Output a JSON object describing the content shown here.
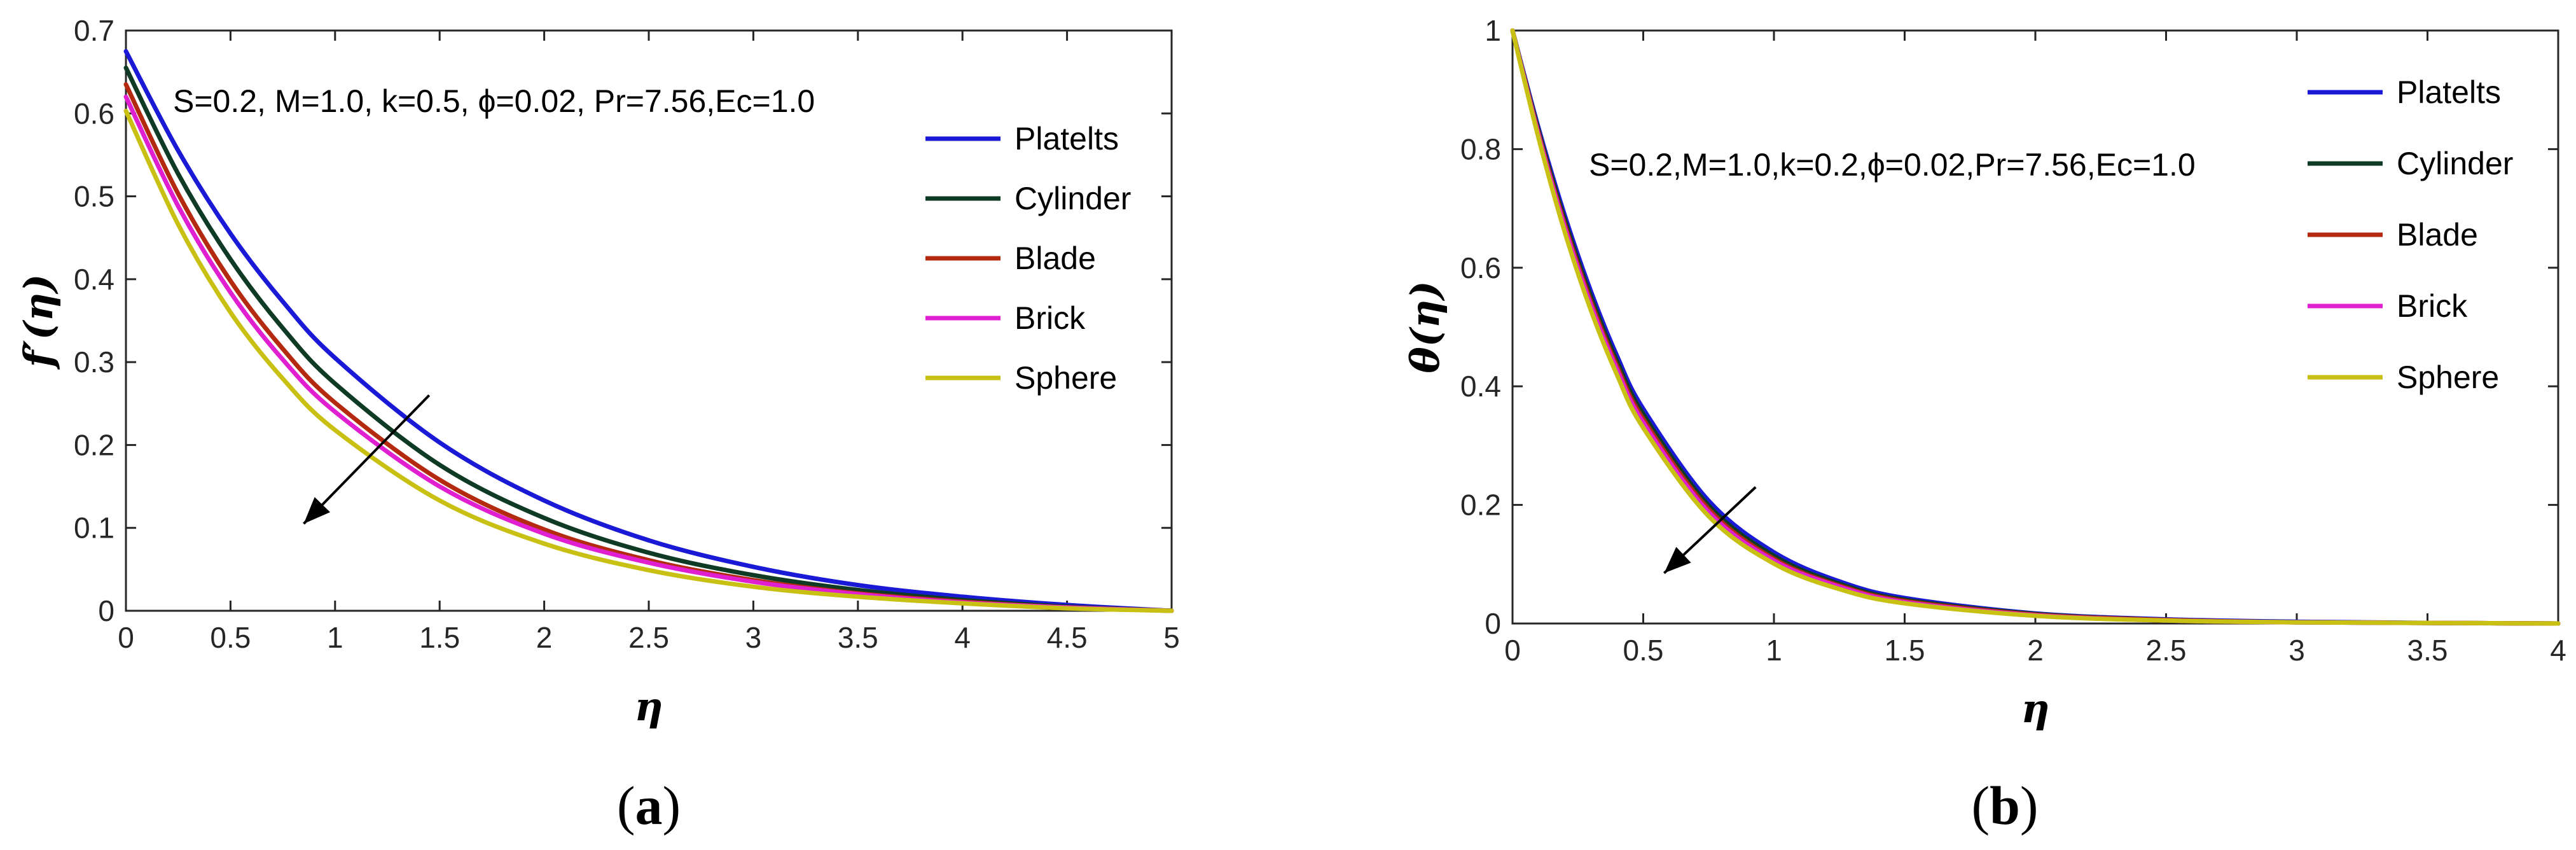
{
  "chart_data": [
    {
      "type": "line",
      "panel_label": "a",
      "xlabel": "η",
      "ylabel": "f′(η)",
      "xlim": [
        0,
        5
      ],
      "ylim": [
        0,
        0.7
      ],
      "xticks": [
        "0",
        "0.5",
        "1",
        "1.5",
        "2",
        "2.5",
        "3",
        "3.5",
        "4",
        "4.5",
        "5"
      ],
      "yticks": [
        "0",
        "0.1",
        "0.2",
        "0.3",
        "0.4",
        "0.5",
        "0.6",
        "0.7"
      ],
      "annotation": "S=0.2, M=1.0, k=0.5, ϕ=0.02, Pr=7.56,Ec=1.0",
      "legend_position": "top-right",
      "arrow": {
        "from": [
          1.45,
          0.26
        ],
        "to": [
          0.85,
          0.105
        ]
      },
      "series": [
        {
          "name": "Platelts",
          "color": "#1a1ad6",
          "x": [
            0,
            0.25,
            0.5,
            0.75,
            1,
            1.5,
            2,
            2.5,
            3,
            3.5,
            4,
            4.5,
            5
          ],
          "y": [
            0.675,
            0.555,
            0.455,
            0.373,
            0.305,
            0.203,
            0.133,
            0.085,
            0.053,
            0.031,
            0.017,
            0.007,
            0
          ]
        },
        {
          "name": "Cylinder",
          "color": "#0f3a24",
          "x": [
            0,
            0.25,
            0.5,
            0.75,
            1,
            1.5,
            2,
            2.5,
            3,
            3.5,
            4,
            4.5,
            5
          ],
          "y": [
            0.655,
            0.527,
            0.424,
            0.341,
            0.274,
            0.176,
            0.112,
            0.07,
            0.043,
            0.025,
            0.013,
            0.005,
            0
          ]
        },
        {
          "name": "Blade",
          "color": "#b42a10",
          "x": [
            0,
            0.25,
            0.5,
            0.75,
            1,
            1.5,
            2,
            2.5,
            3,
            3.5,
            4,
            4.5,
            5
          ],
          "y": [
            0.635,
            0.503,
            0.398,
            0.316,
            0.251,
            0.158,
            0.098,
            0.061,
            0.037,
            0.021,
            0.011,
            0.004,
            0
          ]
        },
        {
          "name": "Brick",
          "color": "#e020d0",
          "x": [
            0,
            0.25,
            0.5,
            0.75,
            1,
            1.5,
            2,
            2.5,
            3,
            3.5,
            4,
            4.5,
            5
          ],
          "y": [
            0.62,
            0.488,
            0.384,
            0.303,
            0.24,
            0.15,
            0.093,
            0.058,
            0.035,
            0.02,
            0.01,
            0.004,
            0
          ]
        },
        {
          "name": "Sphere",
          "color": "#c8c012",
          "x": [
            0,
            0.25,
            0.5,
            0.75,
            1,
            1.5,
            2,
            2.5,
            3,
            3.5,
            4,
            4.5,
            5
          ],
          "y": [
            0.603,
            0.466,
            0.36,
            0.28,
            0.218,
            0.133,
            0.081,
            0.049,
            0.029,
            0.017,
            0.009,
            0.003,
            0
          ]
        }
      ]
    },
    {
      "type": "line",
      "panel_label": "b",
      "xlabel": "η",
      "ylabel": "θ(η)",
      "xlim": [
        0,
        4
      ],
      "ylim": [
        0,
        1
      ],
      "xticks": [
        "0",
        "0.5",
        "1",
        "1.5",
        "2",
        "2.5",
        "3",
        "3.5",
        "4"
      ],
      "yticks": [
        "0",
        "0.2",
        "0.4",
        "0.6",
        "0.8",
        "1"
      ],
      "annotation": "S=0.2,M=1.0,k=0.2,ϕ=0.02,Pr=7.56,Ec=1.0",
      "legend_position": "top-right",
      "arrow": {
        "from": [
          0.93,
          0.23
        ],
        "to": [
          0.58,
          0.085
        ]
      },
      "series": [
        {
          "name": "Platelts",
          "color": "#1a1ad6",
          "x": [
            0,
            0.1,
            0.2,
            0.3,
            0.4,
            0.5,
            0.75,
            1,
            1.25,
            1.5,
            2,
            2.5,
            3,
            3.5,
            4
          ],
          "y": [
            1,
            0.835,
            0.688,
            0.56,
            0.451,
            0.362,
            0.207,
            0.12,
            0.071,
            0.043,
            0.017,
            0.007,
            0.003,
            0.001,
            0
          ]
        },
        {
          "name": "Cylinder",
          "color": "#0f3a24",
          "x": [
            0,
            0.1,
            0.2,
            0.3,
            0.4,
            0.5,
            0.75,
            1,
            1.25,
            1.5,
            2,
            2.5,
            3,
            3.5,
            4
          ],
          "y": [
            1,
            0.83,
            0.68,
            0.551,
            0.442,
            0.353,
            0.199,
            0.114,
            0.067,
            0.04,
            0.016,
            0.006,
            0.002,
            0.001,
            0
          ]
        },
        {
          "name": "Blade",
          "color": "#b42a10",
          "x": [
            0,
            0.1,
            0.2,
            0.3,
            0.4,
            0.5,
            0.75,
            1,
            1.25,
            1.5,
            2,
            2.5,
            3,
            3.5,
            4
          ],
          "y": [
            1,
            0.826,
            0.673,
            0.543,
            0.434,
            0.345,
            0.193,
            0.109,
            0.064,
            0.038,
            0.015,
            0.006,
            0.002,
            0.001,
            0
          ]
        },
        {
          "name": "Brick",
          "color": "#e020d0",
          "x": [
            0,
            0.1,
            0.2,
            0.3,
            0.4,
            0.5,
            0.75,
            1,
            1.25,
            1.5,
            2,
            2.5,
            3,
            3.5,
            4
          ],
          "y": [
            1,
            0.823,
            0.668,
            0.537,
            0.428,
            0.339,
            0.188,
            0.106,
            0.062,
            0.036,
            0.014,
            0.005,
            0.002,
            0.001,
            0
          ]
        },
        {
          "name": "Sphere",
          "color": "#c8c012",
          "x": [
            0,
            0.1,
            0.2,
            0.3,
            0.4,
            0.5,
            0.75,
            1,
            1.25,
            1.5,
            2,
            2.5,
            3,
            3.5,
            4
          ],
          "y": [
            1,
            0.818,
            0.66,
            0.528,
            0.419,
            0.33,
            0.181,
            0.101,
            0.058,
            0.034,
            0.013,
            0.005,
            0.002,
            0.001,
            0
          ]
        }
      ]
    }
  ]
}
